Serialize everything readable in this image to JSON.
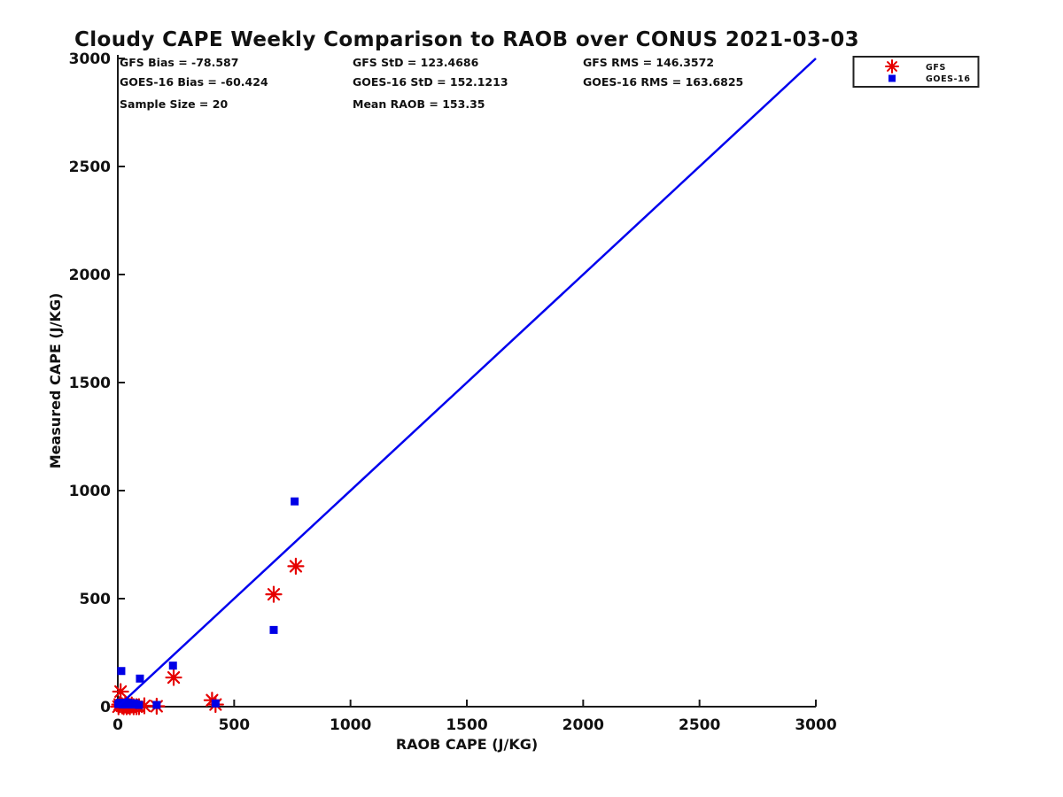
{
  "chart_data": {
    "type": "scatter",
    "title": "Cloudy CAPE Weekly Comparison to RAOB over CONUS 2021-03-03",
    "xlabel": "RAOB CAPE (J/KG)",
    "ylabel": "Measured CAPE (J/KG)",
    "xlim": [
      0,
      3000
    ],
    "ylim": [
      0,
      3000
    ],
    "xticks": [
      0,
      500,
      1000,
      1500,
      2000,
      2500,
      3000
    ],
    "yticks": [
      0,
      500,
      1000,
      1500,
      2000,
      2500,
      3000
    ],
    "grid": false,
    "axis_color": "#1a1a1a",
    "annotations": [
      [
        "GFS Bias = -78.587",
        "GFS StD = 123.4686",
        "GFS RMS = 146.3572"
      ],
      [
        "GOES-16 Bias = -60.424",
        "GOES-16 StD = 152.1213",
        "GOES-16 RMS = 163.6825"
      ],
      [
        "Sample Size = 20",
        "Mean RAOB = 153.35"
      ]
    ],
    "reference_line": {
      "name": "one-to-one-line",
      "from": [
        0,
        0
      ],
      "to": [
        3000,
        3000
      ],
      "color": "#0000EE",
      "width": 2.5
    },
    "legend": {
      "position": "top-right",
      "entries": [
        {
          "label": "GFS",
          "marker": "asterisk",
          "color": "#E60000"
        },
        {
          "label": "GOES-16",
          "marker": "square",
          "color": "#0000E6"
        }
      ]
    },
    "series": [
      {
        "name": "GFS",
        "marker": "asterisk",
        "color": "#E60000",
        "points": [
          [
            3,
            0
          ],
          [
            8,
            10
          ],
          [
            12,
            70
          ],
          [
            18,
            4
          ],
          [
            25,
            0
          ],
          [
            32,
            8
          ],
          [
            38,
            0
          ],
          [
            45,
            5
          ],
          [
            52,
            0
          ],
          [
            60,
            8
          ],
          [
            68,
            0
          ],
          [
            80,
            0
          ],
          [
            91,
            0
          ],
          [
            114,
            4
          ],
          [
            167,
            2
          ],
          [
            240,
            135
          ],
          [
            405,
            30
          ],
          [
            420,
            10
          ],
          [
            670,
            520
          ],
          [
            765,
            650
          ]
        ]
      },
      {
        "name": "GOES-16",
        "marker": "square",
        "color": "#0000E6",
        "points": [
          [
            2,
            12
          ],
          [
            9,
            18
          ],
          [
            15,
            165
          ],
          [
            22,
            10
          ],
          [
            29,
            16
          ],
          [
            36,
            10
          ],
          [
            43,
            18
          ],
          [
            50,
            12
          ],
          [
            55,
            10
          ],
          [
            57,
            16
          ],
          [
            64,
            10
          ],
          [
            71,
            15
          ],
          [
            78,
            12
          ],
          [
            91,
            8
          ],
          [
            95,
            130
          ],
          [
            167,
            8
          ],
          [
            237,
            190
          ],
          [
            420,
            15
          ],
          [
            670,
            355
          ],
          [
            760,
            950
          ]
        ]
      }
    ]
  }
}
